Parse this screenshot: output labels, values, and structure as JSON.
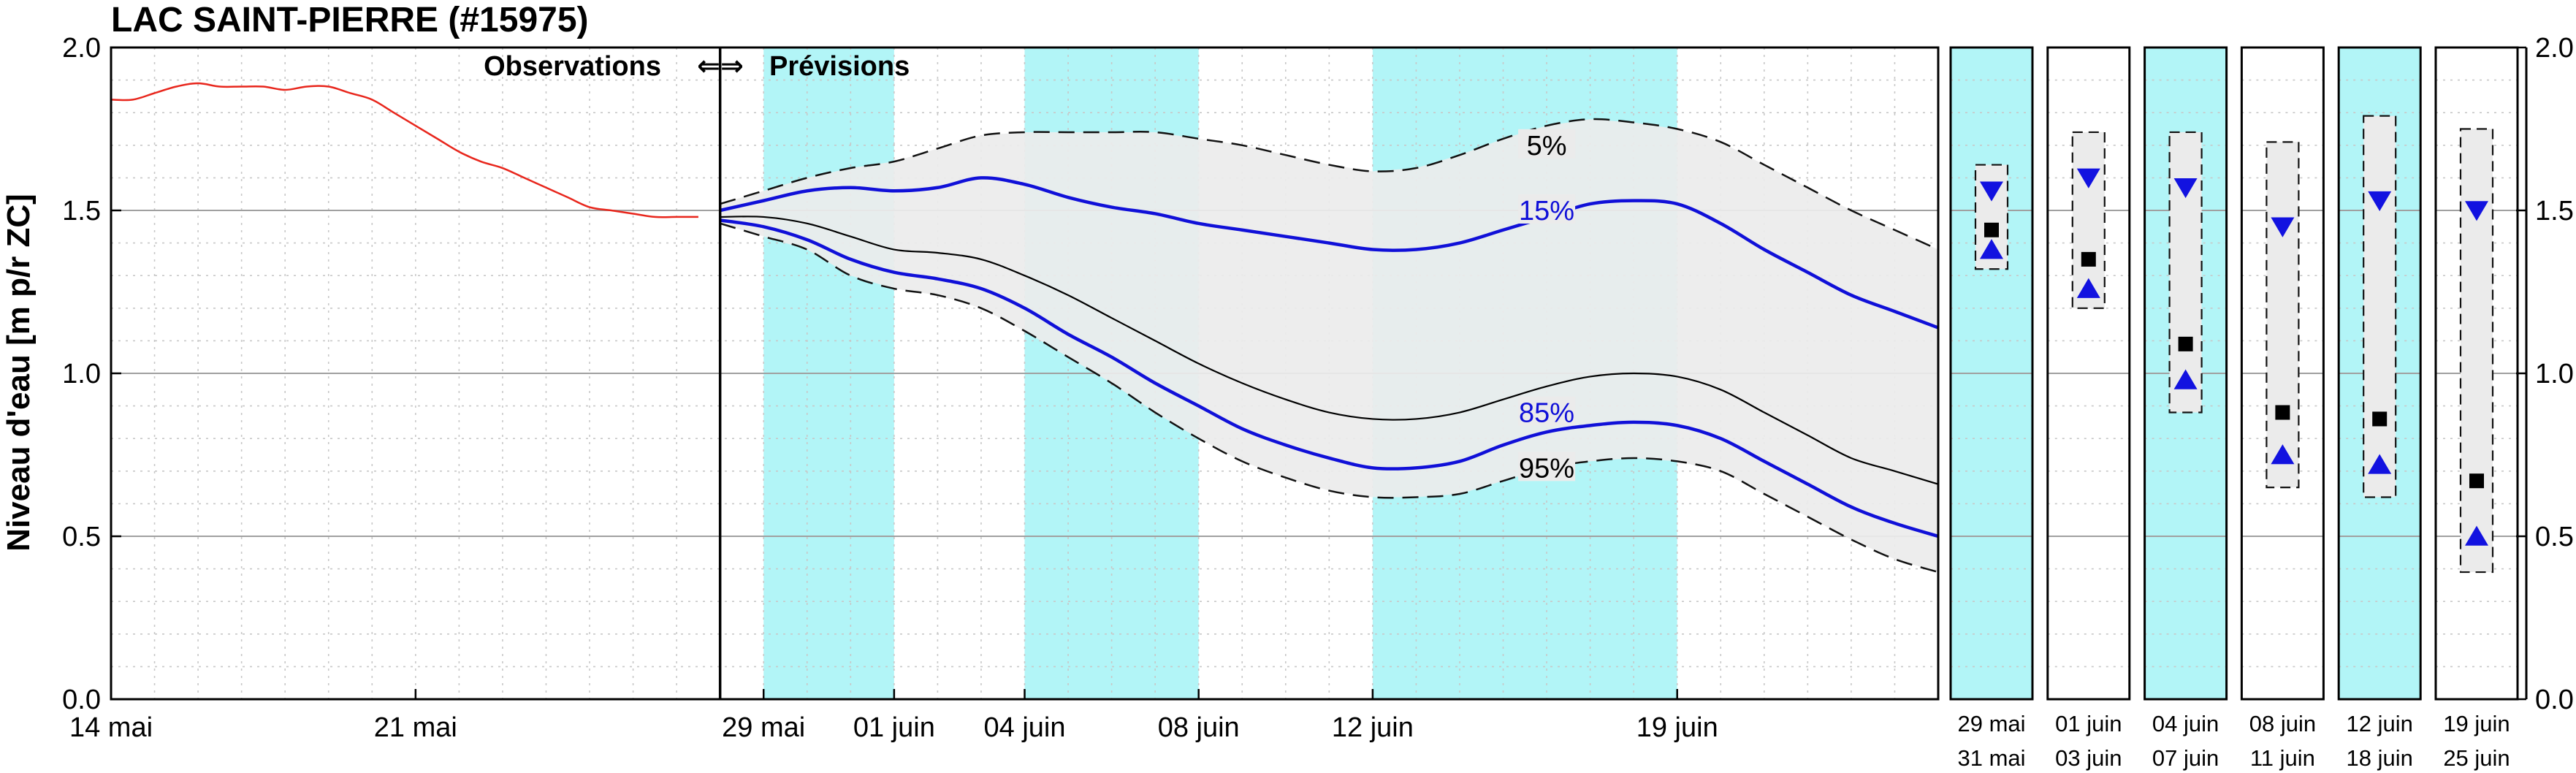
{
  "title": "LAC SAINT-PIERRE (#15975)",
  "chart_data": {
    "type": "line",
    "title": "LAC SAINT-PIERRE (#15975)",
    "ylabel": "Niveau d'eau [m p/r ZC]",
    "ylim": [
      0.0,
      2.0
    ],
    "yticks": [
      "0.0",
      "0.5",
      "1.0",
      "1.5",
      "2.0"
    ],
    "grid": true,
    "xlim_days": [
      0,
      42
    ],
    "xticks": [
      {
        "day": 0,
        "label": "14 mai"
      },
      {
        "day": 7,
        "label": "21 mai"
      },
      {
        "day": 15,
        "label": "29 mai"
      },
      {
        "day": 18,
        "label": "01 juin"
      },
      {
        "day": 21,
        "label": "04 juin"
      },
      {
        "day": 25,
        "label": "08 juin"
      },
      {
        "day": 29,
        "label": "12 juin"
      },
      {
        "day": 36,
        "label": "19 juin"
      }
    ],
    "annotations": {
      "observations": "Observations",
      "arrows": "⇐⇒",
      "previsions": "Prévisions"
    },
    "forecast_start_day": 14,
    "shaded_day_ranges": [
      [
        15,
        18
      ],
      [
        21,
        25
      ],
      [
        29,
        36
      ]
    ],
    "colors": {
      "observed": "#e8261c",
      "quantile_inner": "#1010d8",
      "median": "#000000",
      "band": "#ebebeb",
      "shade": "#b2f5f7",
      "marker_blue": "#1212e0"
    },
    "observed": {
      "x": [
        0,
        0.5,
        1,
        1.5,
        2,
        2.5,
        3,
        3.5,
        4,
        4.5,
        5,
        5.5,
        6,
        6.5,
        7,
        7.5,
        8,
        8.5,
        9,
        9.5,
        10,
        10.5,
        11,
        11.5,
        12,
        12.5,
        13,
        13.5
      ],
      "y": [
        1.84,
        1.84,
        1.86,
        1.88,
        1.89,
        1.88,
        1.88,
        1.88,
        1.87,
        1.88,
        1.88,
        1.86,
        1.84,
        1.8,
        1.76,
        1.72,
        1.68,
        1.65,
        1.63,
        1.6,
        1.57,
        1.54,
        1.51,
        1.5,
        1.49,
        1.48,
        1.48,
        1.48
      ]
    },
    "forecast_x": [
      14,
      15,
      16,
      17,
      18,
      19,
      20,
      21,
      22,
      23,
      24,
      25,
      26,
      27,
      28,
      29,
      30,
      31,
      32,
      33,
      34,
      35,
      36,
      37,
      38,
      39,
      40,
      41,
      42
    ],
    "series": [
      {
        "name": "5%",
        "style": "dashed",
        "values": [
          1.52,
          1.56,
          1.6,
          1.63,
          1.65,
          1.69,
          1.73,
          1.74,
          1.74,
          1.74,
          1.74,
          1.72,
          1.7,
          1.67,
          1.64,
          1.62,
          1.63,
          1.67,
          1.72,
          1.76,
          1.78,
          1.77,
          1.75,
          1.71,
          1.64,
          1.57,
          1.5,
          1.44,
          1.38
        ]
      },
      {
        "name": "15%",
        "style": "solid",
        "values": [
          1.5,
          1.53,
          1.56,
          1.57,
          1.56,
          1.57,
          1.6,
          1.58,
          1.54,
          1.51,
          1.49,
          1.46,
          1.44,
          1.42,
          1.4,
          1.38,
          1.38,
          1.4,
          1.44,
          1.48,
          1.52,
          1.53,
          1.52,
          1.46,
          1.38,
          1.31,
          1.24,
          1.19,
          1.14
        ]
      },
      {
        "name": "",
        "style": "median",
        "values": [
          1.48,
          1.48,
          1.46,
          1.42,
          1.38,
          1.37,
          1.35,
          1.3,
          1.24,
          1.17,
          1.1,
          1.03,
          0.97,
          0.92,
          0.88,
          0.86,
          0.86,
          0.88,
          0.92,
          0.96,
          0.99,
          1.0,
          0.99,
          0.95,
          0.88,
          0.81,
          0.74,
          0.7,
          0.66
        ]
      },
      {
        "name": "85%",
        "style": "solid",
        "values": [
          1.47,
          1.45,
          1.41,
          1.35,
          1.31,
          1.29,
          1.26,
          1.2,
          1.12,
          1.05,
          0.97,
          0.9,
          0.83,
          0.78,
          0.74,
          0.71,
          0.71,
          0.73,
          0.78,
          0.82,
          0.84,
          0.85,
          0.84,
          0.8,
          0.73,
          0.66,
          0.59,
          0.54,
          0.5
        ]
      },
      {
        "name": "95%",
        "style": "dashed",
        "values": [
          1.46,
          1.42,
          1.38,
          1.3,
          1.26,
          1.24,
          1.2,
          1.13,
          1.05,
          0.97,
          0.88,
          0.8,
          0.73,
          0.68,
          0.64,
          0.62,
          0.62,
          0.63,
          0.67,
          0.71,
          0.73,
          0.74,
          0.73,
          0.7,
          0.63,
          0.56,
          0.49,
          0.43,
          0.39
        ]
      }
    ],
    "weekly_panels": [
      {
        "top": "29  mai",
        "bottom": "31  mai",
        "shaded": true,
        "box": [
          1.64,
          1.32
        ],
        "median": 1.44,
        "high": 1.56,
        "low": 1.38
      },
      {
        "top": "01  juin",
        "bottom": "03  juin",
        "shaded": false,
        "box": [
          1.74,
          1.2
        ],
        "median": 1.35,
        "high": 1.6,
        "low": 1.26
      },
      {
        "top": "04  juin",
        "bottom": "07  juin",
        "shaded": true,
        "box": [
          1.74,
          0.88
        ],
        "median": 1.09,
        "high": 1.57,
        "low": 0.98
      },
      {
        "top": "08  juin",
        "bottom": "11  juin",
        "shaded": false,
        "box": [
          1.71,
          0.65
        ],
        "median": 0.88,
        "high": 1.45,
        "low": 0.75
      },
      {
        "top": "12  juin",
        "bottom": "18  juin",
        "shaded": true,
        "box": [
          1.79,
          0.62
        ],
        "median": 0.86,
        "high": 1.53,
        "low": 0.72
      },
      {
        "top": "19  juin",
        "bottom": "25  juin",
        "shaded": false,
        "box": [
          1.75,
          0.39
        ],
        "median": 0.67,
        "high": 1.5,
        "low": 0.5
      }
    ]
  }
}
